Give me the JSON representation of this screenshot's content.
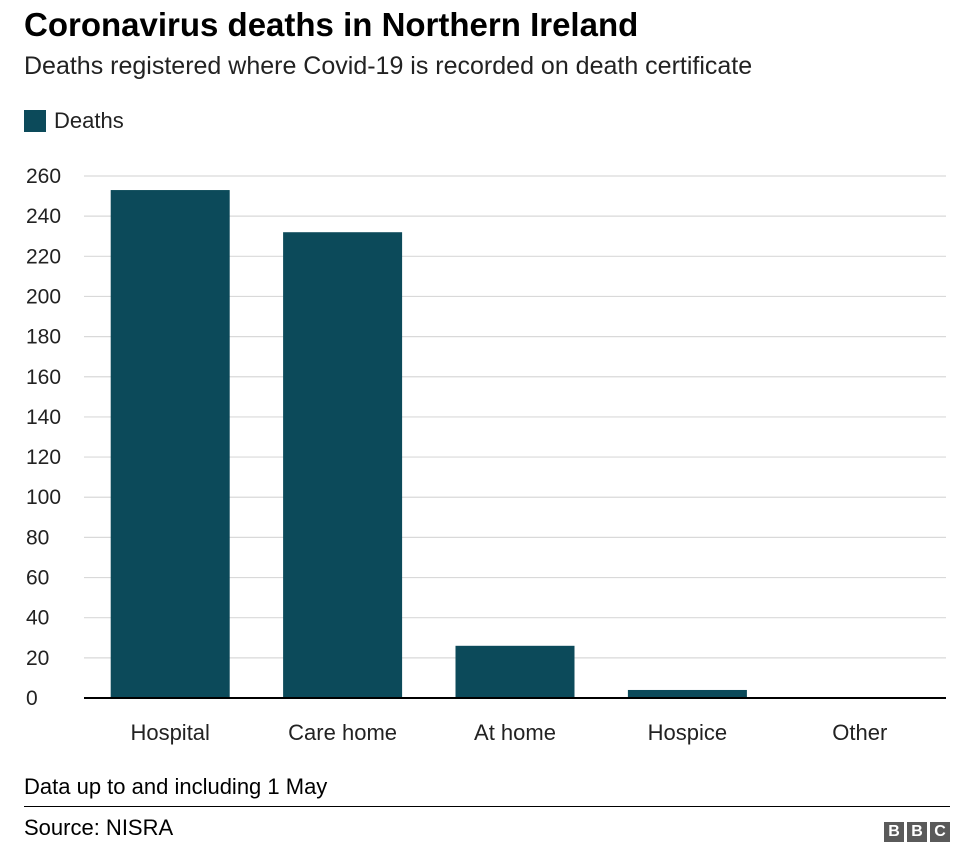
{
  "title": "Coronavirus deaths in Northern Ireland",
  "subtitle": "Deaths registered where Covid-19 is recorded on death certificate",
  "legend": {
    "label": "Deaths"
  },
  "colors": {
    "bar": "#0c4a5a",
    "grid": "#d9d9d9",
    "axis": "#000000",
    "logo": "#5a5a5a"
  },
  "footer": {
    "note": "Data up to and including 1 May",
    "source": "Source: NISRA",
    "logo_letters": [
      "B",
      "B",
      "C"
    ]
  },
  "chart_data": {
    "type": "bar",
    "categories": [
      "Hospital",
      "Care home",
      "At home",
      "Hospice",
      "Other"
    ],
    "series": [
      {
        "name": "Deaths",
        "values": [
          253,
          232,
          26,
          4,
          0
        ]
      }
    ],
    "ylim": [
      0,
      260
    ],
    "yticks": [
      0,
      20,
      40,
      60,
      80,
      100,
      120,
      140,
      160,
      180,
      200,
      220,
      240,
      260
    ],
    "grid": true,
    "legend_position": "top-left"
  }
}
